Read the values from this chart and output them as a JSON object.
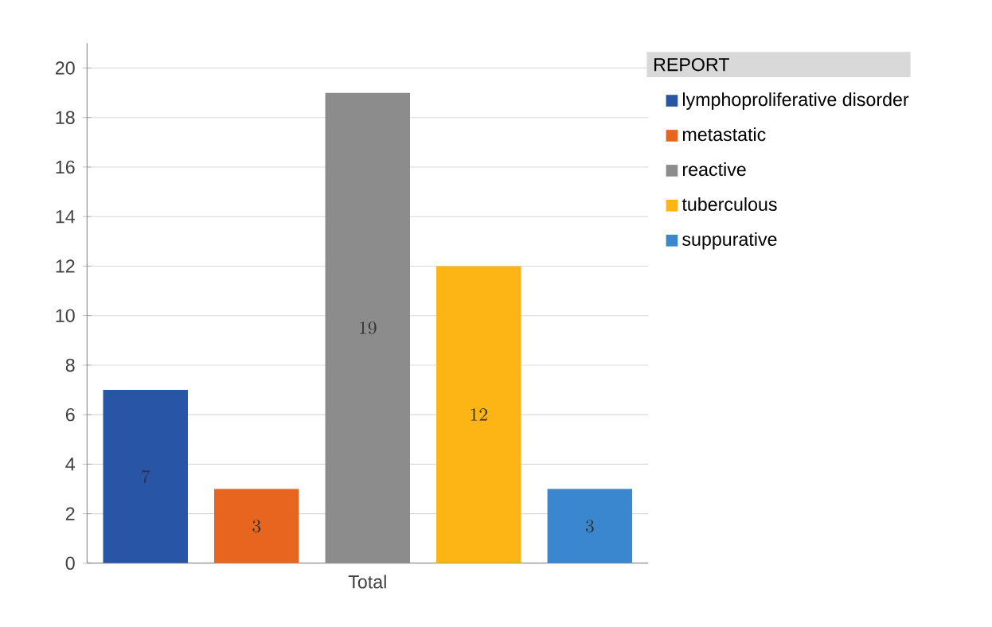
{
  "chart_data": {
    "type": "bar",
    "categories": [
      "Total"
    ],
    "legend_title": "REPORT",
    "series": [
      {
        "name": "lymphoproliferative disorder",
        "color": "#2855a6",
        "values": [
          7
        ]
      },
      {
        "name": "metastatic",
        "color": "#e8651f",
        "values": [
          3
        ]
      },
      {
        "name": "reactive",
        "color": "#8c8c8c",
        "values": [
          19
        ]
      },
      {
        "name": "tuberculous",
        "color": "#fdb515",
        "values": [
          12
        ]
      },
      {
        "name": "suppurative",
        "color": "#3a86cf",
        "values": [
          3
        ]
      }
    ],
    "ylim": [
      0,
      21
    ],
    "yticks": [
      0,
      2,
      4,
      6,
      8,
      10,
      12,
      14,
      16,
      18,
      20
    ],
    "grid": "y",
    "legend": "right",
    "data_labels": true
  }
}
